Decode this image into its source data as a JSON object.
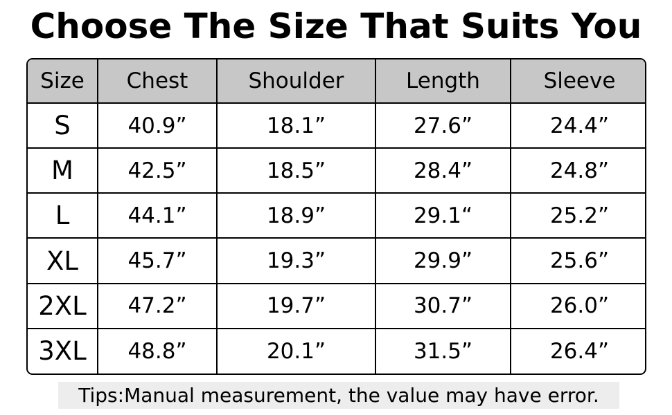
{
  "title": "Choose The Size That Suits You",
  "table": {
    "headers": [
      "Size",
      "Chest",
      "Shoulder",
      "Length",
      "Sleeve"
    ],
    "rows": [
      [
        "S",
        "40.9”",
        "18.1”",
        "27.6”",
        "24.4”"
      ],
      [
        "M",
        "42.5”",
        "18.5”",
        "28.4”",
        "24.8”"
      ],
      [
        "L",
        "44.1”",
        "18.9”",
        "29.1“",
        "25.2”"
      ],
      [
        "XL",
        "45.7”",
        "19.3”",
        "29.9”",
        "25.6”"
      ],
      [
        "2XL",
        "47.2”",
        "19.7”",
        "30.7”",
        "26.0”"
      ],
      [
        "3XL",
        "48.8”",
        "20.1”",
        "31.5”",
        "26.4”"
      ]
    ]
  },
  "tips": "Tips:Manual measurement, the value may have error.",
  "colors": {
    "header_background": "#c7c7c7",
    "tips_background": "#ededed",
    "border": "#000000"
  }
}
